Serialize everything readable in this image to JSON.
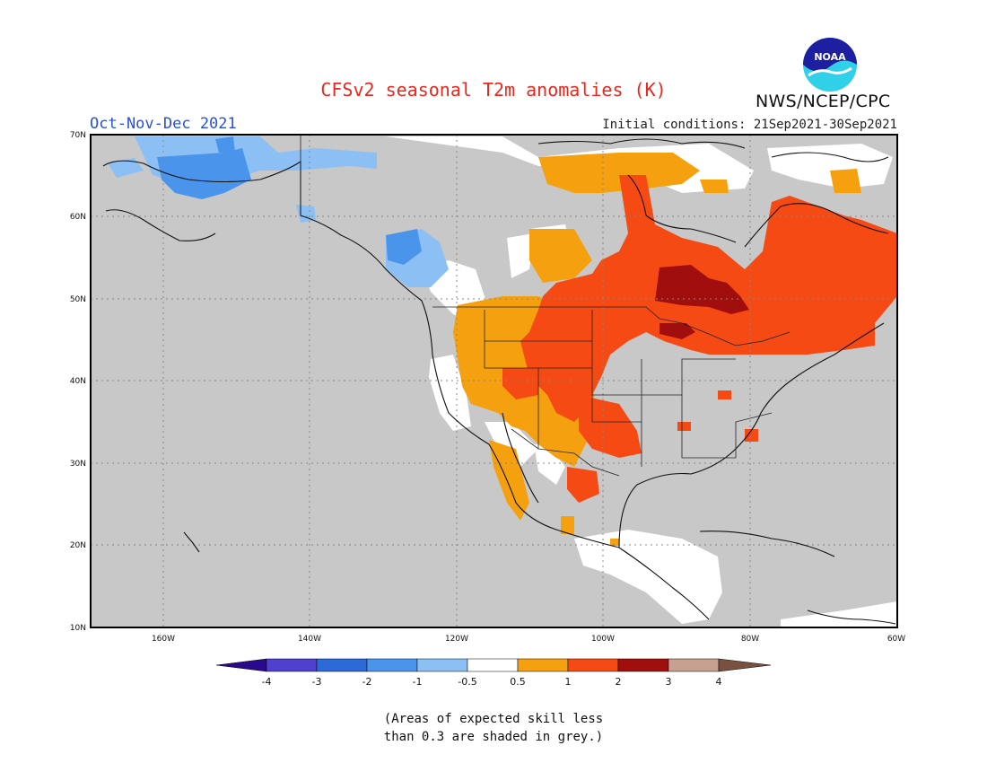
{
  "title": "CFSv2 seasonal T2m anomalies (K)",
  "agency": "NWS/NCEP/CPC",
  "logo_text": "NOAA",
  "period": "Oct-Nov-Dec 2021",
  "initial_conditions": "Initial conditions: 21Sep2021-30Sep2021",
  "map": {
    "lon_range": [
      -170,
      -60
    ],
    "lat_range": [
      10,
      70
    ],
    "lat_labels": [
      "70N",
      "60N",
      "50N",
      "40N",
      "30N",
      "20N",
      "10N"
    ],
    "lon_labels": [
      "160W",
      "140W",
      "120W",
      "100W",
      "80W",
      "60W"
    ],
    "gridlines": "dotted",
    "background_color": "#c8c8c8",
    "skill_mask_note": "(Areas of expected skill less than 0.3 are shaded in grey.)"
  },
  "colorbar": {
    "labels": [
      "-4",
      "-3",
      "-2",
      "-1",
      "-0.5",
      "0.5",
      "1",
      "2",
      "3",
      "4"
    ],
    "colors": [
      "#2a0a8c",
      "#5040d0",
      "#2c6ad8",
      "#4a94ec",
      "#8cc0f4",
      "#ffffff",
      "#f5a00f",
      "#f54a14",
      "#a00e0e",
      "#c8a090",
      "#7a5040"
    ]
  },
  "note_line1": "(Areas of expected skill less",
  "note_line2": "than 0.3 are shaded in grey.)",
  "anomaly_regions": [
    {
      "region": "Alaska north slope",
      "class": "-1 to -0.5"
    },
    {
      "region": "Northern Alaska interior",
      "class": "-2 to -1"
    },
    {
      "region": "British Columbia coast",
      "class": "-1 to -0.5"
    },
    {
      "region": "US Southwest / Great Basin",
      "class": "0.5 to 1"
    },
    {
      "region": "Northern Plains / Prairies",
      "class": "1 to 2"
    },
    {
      "region": "Hudson Bay south / Ontario",
      "class": "2 to 3"
    },
    {
      "region": "Quebec / Labrador",
      "class": "1 to 2"
    },
    {
      "region": "Southern Plains / Texas",
      "class": "1 to 2"
    },
    {
      "region": "Canadian Arctic Archipelago",
      "class": "0.5 to 1"
    },
    {
      "region": "Central America",
      "class": "-0.5 to 0.5"
    }
  ]
}
